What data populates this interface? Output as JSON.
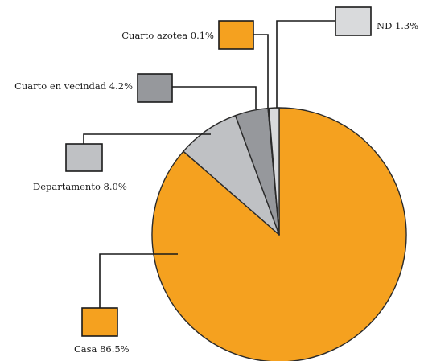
{
  "chart_data": {
    "type": "pie",
    "title": "",
    "slices": [
      {
        "label": "Casa 86.5%",
        "category": "Casa",
        "value": 86.5,
        "color": "#f5a11f"
      },
      {
        "label": "Departamento 8.0%",
        "category": "Departamento",
        "value": 8.0,
        "color": "#bfc1c4"
      },
      {
        "label": "Cuarto en vecindad 4.2%",
        "category": "Cuarto en vecindad",
        "value": 4.2,
        "color": "#96989c"
      },
      {
        "label": "Cuarto azotea 0.1%",
        "category": "Cuarto azotea",
        "value": 0.1,
        "color": "#f5a11f"
      },
      {
        "label": "ND 1.3%",
        "category": "ND",
        "value": 1.3,
        "color": "#d9dadc"
      }
    ],
    "legend": "callout-boxes"
  }
}
